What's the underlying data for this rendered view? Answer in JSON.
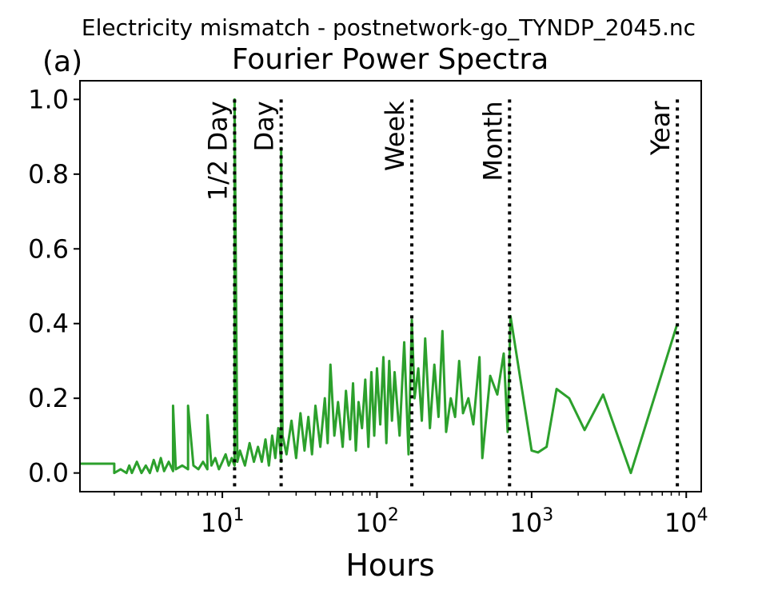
{
  "figure": {
    "suptitle": "Electricity mismatch - postnetwork-go_TYNDP_2045.nc",
    "panel_label": "(a)"
  },
  "chart_data": {
    "type": "line",
    "title": "Fourier Power Spectra",
    "xlabel": "Hours",
    "ylabel": "",
    "x_scale": "log",
    "xlim": [
      1.2,
      12500
    ],
    "ylim": [
      -0.05,
      1.05
    ],
    "grid": false,
    "line_color": "#2ca02c",
    "x_ticks": [
      {
        "value": 10,
        "base": "10",
        "exp": "1"
      },
      {
        "value": 100,
        "base": "10",
        "exp": "2"
      },
      {
        "value": 1000,
        "base": "10",
        "exp": "3"
      },
      {
        "value": 10000,
        "base": "10",
        "exp": "4"
      }
    ],
    "y_ticks": [
      {
        "value": 0.0,
        "label": "0.0"
      },
      {
        "value": 0.2,
        "label": "0.2"
      },
      {
        "value": 0.4,
        "label": "0.4"
      },
      {
        "value": 0.6,
        "label": "0.6"
      },
      {
        "value": 0.8,
        "label": "0.8"
      },
      {
        "value": 1.0,
        "label": "1.0"
      }
    ],
    "reference_lines": [
      {
        "label": "1/2 Day",
        "x": 12
      },
      {
        "label": "Day",
        "x": 24
      },
      {
        "label": "Week",
        "x": 168
      },
      {
        "label": "Month",
        "x": 720
      },
      {
        "label": "Year",
        "x": 8760
      }
    ],
    "series": [
      {
        "x": [
          1.0,
          2.0,
          2.0,
          2.2,
          2.4,
          2.5,
          2.6,
          2.8,
          3.0,
          3.2,
          3.4,
          3.6,
          3.8,
          4.0,
          4.2,
          4.5,
          4.8,
          4.8,
          5.0,
          5.5,
          6.0,
          6.0,
          6.5,
          7.0,
          7.5,
          8.0,
          8.0,
          8.5,
          9.0,
          9.5,
          10.0,
          10.5,
          11.0,
          11.5,
          12.0,
          12.0,
          12.5,
          13.0,
          14.0,
          15.0,
          16.0,
          17.0,
          18.0,
          19.0,
          20.0,
          21.0,
          22.0,
          23.0,
          24.0,
          24.0,
          24.5,
          26.0,
          28.0,
          30.0,
          32.0,
          34.0,
          36.0,
          38.0,
          40.0,
          43.0,
          46.0,
          48.0,
          50.0,
          53.0,
          56.0,
          60.0,
          63.0,
          67.0,
          70.0,
          73.0,
          76.0,
          80.0,
          84.0,
          88.0,
          92.0,
          96.0,
          100.0,
          105.0,
          110.0,
          115.0,
          120.0,
          125.0,
          130.0,
          140.0,
          150.0,
          160.0,
          168.0,
          175.0,
          185.0,
          195.0,
          205.0,
          220.0,
          235.0,
          250.0,
          265.0,
          280.0,
          300.0,
          320.0,
          340.0,
          360.0,
          390.0,
          420.0,
          460.0,
          480.0,
          540.0,
          600.0,
          660.0,
          700.0,
          730.0,
          1000.0,
          1100.0,
          1250.0,
          1450.0,
          1750.0,
          2200.0,
          2900.0,
          4380.0,
          8760.0
        ],
        "y": [
          0.025,
          0.025,
          0.0,
          0.01,
          0.0,
          0.02,
          0.0,
          0.03,
          0.0,
          0.02,
          0.0,
          0.035,
          0.005,
          0.04,
          0.005,
          0.03,
          0.005,
          0.18,
          0.01,
          0.02,
          0.01,
          0.18,
          0.02,
          0.01,
          0.03,
          0.01,
          0.155,
          0.02,
          0.04,
          0.01,
          0.03,
          0.05,
          0.02,
          0.04,
          0.02,
          1.0,
          0.03,
          0.06,
          0.02,
          0.08,
          0.03,
          0.07,
          0.03,
          0.09,
          0.02,
          0.1,
          0.04,
          0.12,
          0.03,
          0.87,
          0.1,
          0.05,
          0.14,
          0.04,
          0.16,
          0.06,
          0.15,
          0.05,
          0.18,
          0.07,
          0.2,
          0.08,
          0.29,
          0.1,
          0.19,
          0.07,
          0.22,
          0.09,
          0.24,
          0.06,
          0.19,
          0.12,
          0.25,
          0.07,
          0.27,
          0.1,
          0.28,
          0.13,
          0.31,
          0.08,
          0.3,
          0.14,
          0.27,
          0.1,
          0.35,
          0.05,
          0.41,
          0.2,
          0.28,
          0.14,
          0.36,
          0.12,
          0.29,
          0.15,
          0.38,
          0.11,
          0.2,
          0.15,
          0.3,
          0.16,
          0.2,
          0.13,
          0.31,
          0.04,
          0.26,
          0.21,
          0.32,
          0.11,
          0.42,
          0.06,
          0.055,
          0.07,
          0.225,
          0.2,
          0.115,
          0.21,
          0.0,
          0.4
        ]
      }
    ]
  }
}
